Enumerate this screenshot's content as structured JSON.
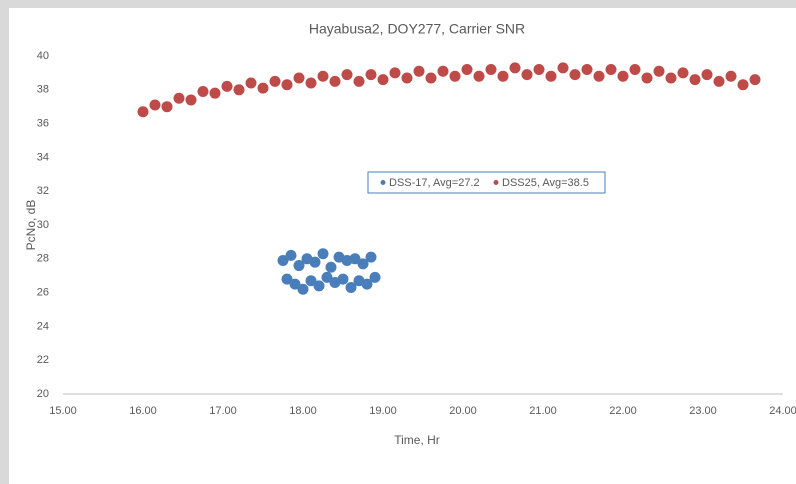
{
  "chart_data": {
    "type": "scatter",
    "title": "Hayabusa2, DOY277, Carrier SNR",
    "xlabel": "Time, Hr",
    "ylabel": "PcNo, dB",
    "xlim": [
      15,
      24
    ],
    "ylim": [
      20,
      40
    ],
    "xticks": [
      {
        "value": 15,
        "label": "15.00"
      },
      {
        "value": 16,
        "label": "16.00"
      },
      {
        "value": 17,
        "label": "17.00"
      },
      {
        "value": 18,
        "label": "18.00"
      },
      {
        "value": 19,
        "label": "19.00"
      },
      {
        "value": 20,
        "label": "20.00"
      },
      {
        "value": 21,
        "label": "21.00"
      },
      {
        "value": 22,
        "label": "22.00"
      },
      {
        "value": 23,
        "label": "23.00"
      },
      {
        "value": 24,
        "label": "24.00"
      }
    ],
    "yticks": [
      20,
      22,
      24,
      26,
      28,
      30,
      32,
      34,
      36,
      38,
      40
    ],
    "grid": false,
    "series": [
      {
        "name": "DSS-17, Avg=27.2",
        "color": "#4a7ebb",
        "x": [
          17.75,
          17.8,
          17.85,
          17.9,
          17.95,
          18.0,
          18.05,
          18.1,
          18.15,
          18.2,
          18.25,
          18.3,
          18.35,
          18.4,
          18.45,
          18.5,
          18.55,
          18.6,
          18.65,
          18.7,
          18.75,
          18.8,
          18.85,
          18.9
        ],
        "values": [
          27.9,
          26.8,
          28.2,
          26.5,
          27.6,
          26.2,
          28.0,
          26.7,
          27.8,
          26.4,
          28.3,
          26.9,
          27.5,
          26.6,
          28.1,
          26.8,
          27.9,
          26.3,
          28.0,
          26.7,
          27.7,
          26.5,
          28.1,
          26.9
        ]
      },
      {
        "name": "DSS25, Avg=38.5",
        "color": "#be4b48",
        "x": [
          16.0,
          16.15,
          16.3,
          16.45,
          16.6,
          16.75,
          16.9,
          17.05,
          17.2,
          17.35,
          17.5,
          17.65,
          17.8,
          17.95,
          18.1,
          18.25,
          18.4,
          18.55,
          18.7,
          18.85,
          19.0,
          19.15,
          19.3,
          19.45,
          19.6,
          19.75,
          19.9,
          20.05,
          20.2,
          20.35,
          20.5,
          20.65,
          20.8,
          20.95,
          21.1,
          21.25,
          21.4,
          21.55,
          21.7,
          21.85,
          22.0,
          22.15,
          22.3,
          22.45,
          22.6,
          22.75,
          22.9,
          23.05,
          23.2,
          23.35,
          23.5,
          23.65
        ],
        "values": [
          36.7,
          37.1,
          37.0,
          37.5,
          37.4,
          37.9,
          37.8,
          38.2,
          38.0,
          38.4,
          38.1,
          38.5,
          38.3,
          38.7,
          38.4,
          38.8,
          38.5,
          38.9,
          38.5,
          38.9,
          38.6,
          39.0,
          38.7,
          39.1,
          38.7,
          39.1,
          38.8,
          39.2,
          38.8,
          39.2,
          38.8,
          39.3,
          38.9,
          39.2,
          38.8,
          39.3,
          38.9,
          39.2,
          38.8,
          39.2,
          38.8,
          39.2,
          38.7,
          39.1,
          38.7,
          39.0,
          38.6,
          38.9,
          38.5,
          38.8,
          38.3,
          38.6
        ]
      }
    ]
  }
}
